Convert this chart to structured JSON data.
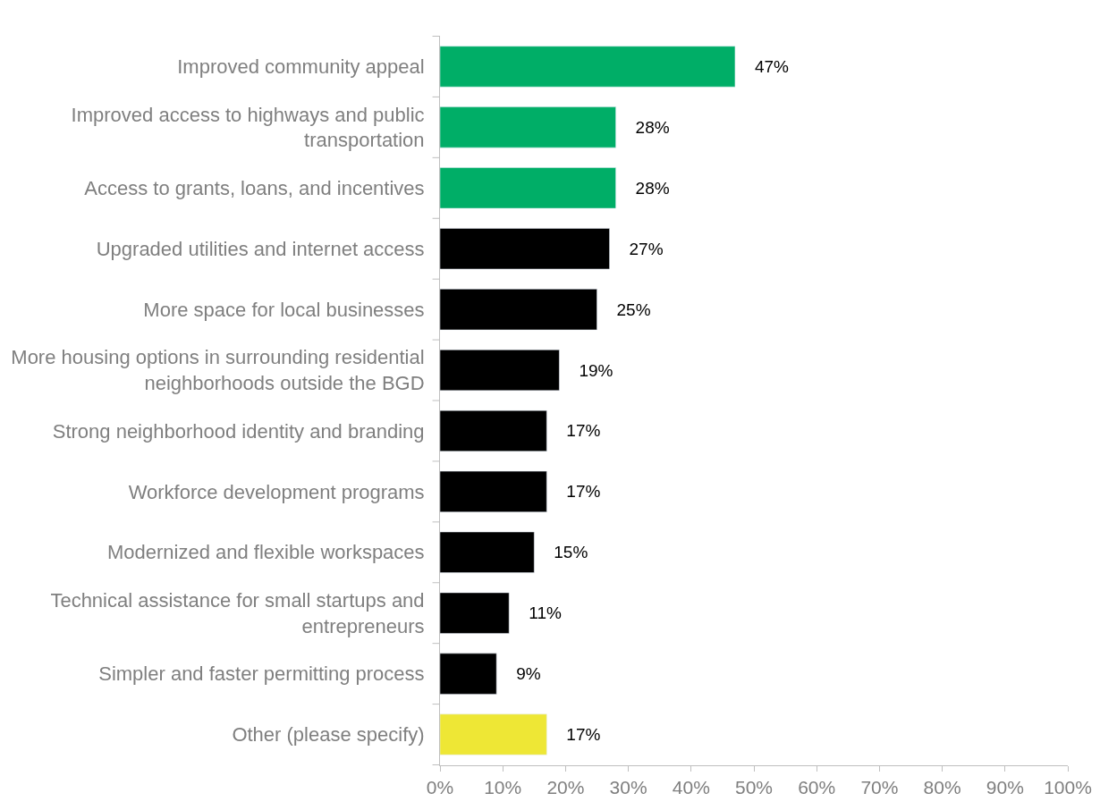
{
  "chart_data": {
    "type": "bar",
    "orientation": "horizontal",
    "categories": [
      "Improved community appeal",
      "Improved access to highways and public transportation",
      "Access to grants, loans, and incentives",
      "Upgraded utilities and internet access",
      "More space for local businesses",
      "More housing options in surrounding residential neighborhoods outside the BGD",
      "Strong neighborhood identity and branding",
      "Workforce development programs",
      "Modernized and flexible workspaces",
      "Technical assistance for small startups and entrepreneurs",
      "Simpler and faster permitting process",
      "Other (please specify)"
    ],
    "values": [
      47,
      28,
      28,
      27,
      25,
      19,
      17,
      17,
      15,
      11,
      9,
      17
    ],
    "colors": [
      "#00ae67",
      "#00ae67",
      "#00ae67",
      "#000000",
      "#000000",
      "#000000",
      "#000000",
      "#000000",
      "#000000",
      "#000000",
      "#000000",
      "#eee735"
    ],
    "value_labels": [
      "47%",
      "28%",
      "28%",
      "27%",
      "25%",
      "19%",
      "17%",
      "17%",
      "15%",
      "11%",
      "9%",
      "17%"
    ],
    "xticks": [
      {
        "value": 0,
        "label": "0%"
      },
      {
        "value": 10,
        "label": "10%"
      },
      {
        "value": 20,
        "label": "20%"
      },
      {
        "value": 30,
        "label": "30%"
      },
      {
        "value": 40,
        "label": "40%"
      },
      {
        "value": 50,
        "label": "50%"
      },
      {
        "value": 60,
        "label": "60%"
      },
      {
        "value": 70,
        "label": "70%"
      },
      {
        "value": 80,
        "label": "80%"
      },
      {
        "value": 90,
        "label": "90%"
      },
      {
        "value": 100,
        "label": "100%"
      }
    ],
    "xlim": [
      0,
      100
    ]
  }
}
